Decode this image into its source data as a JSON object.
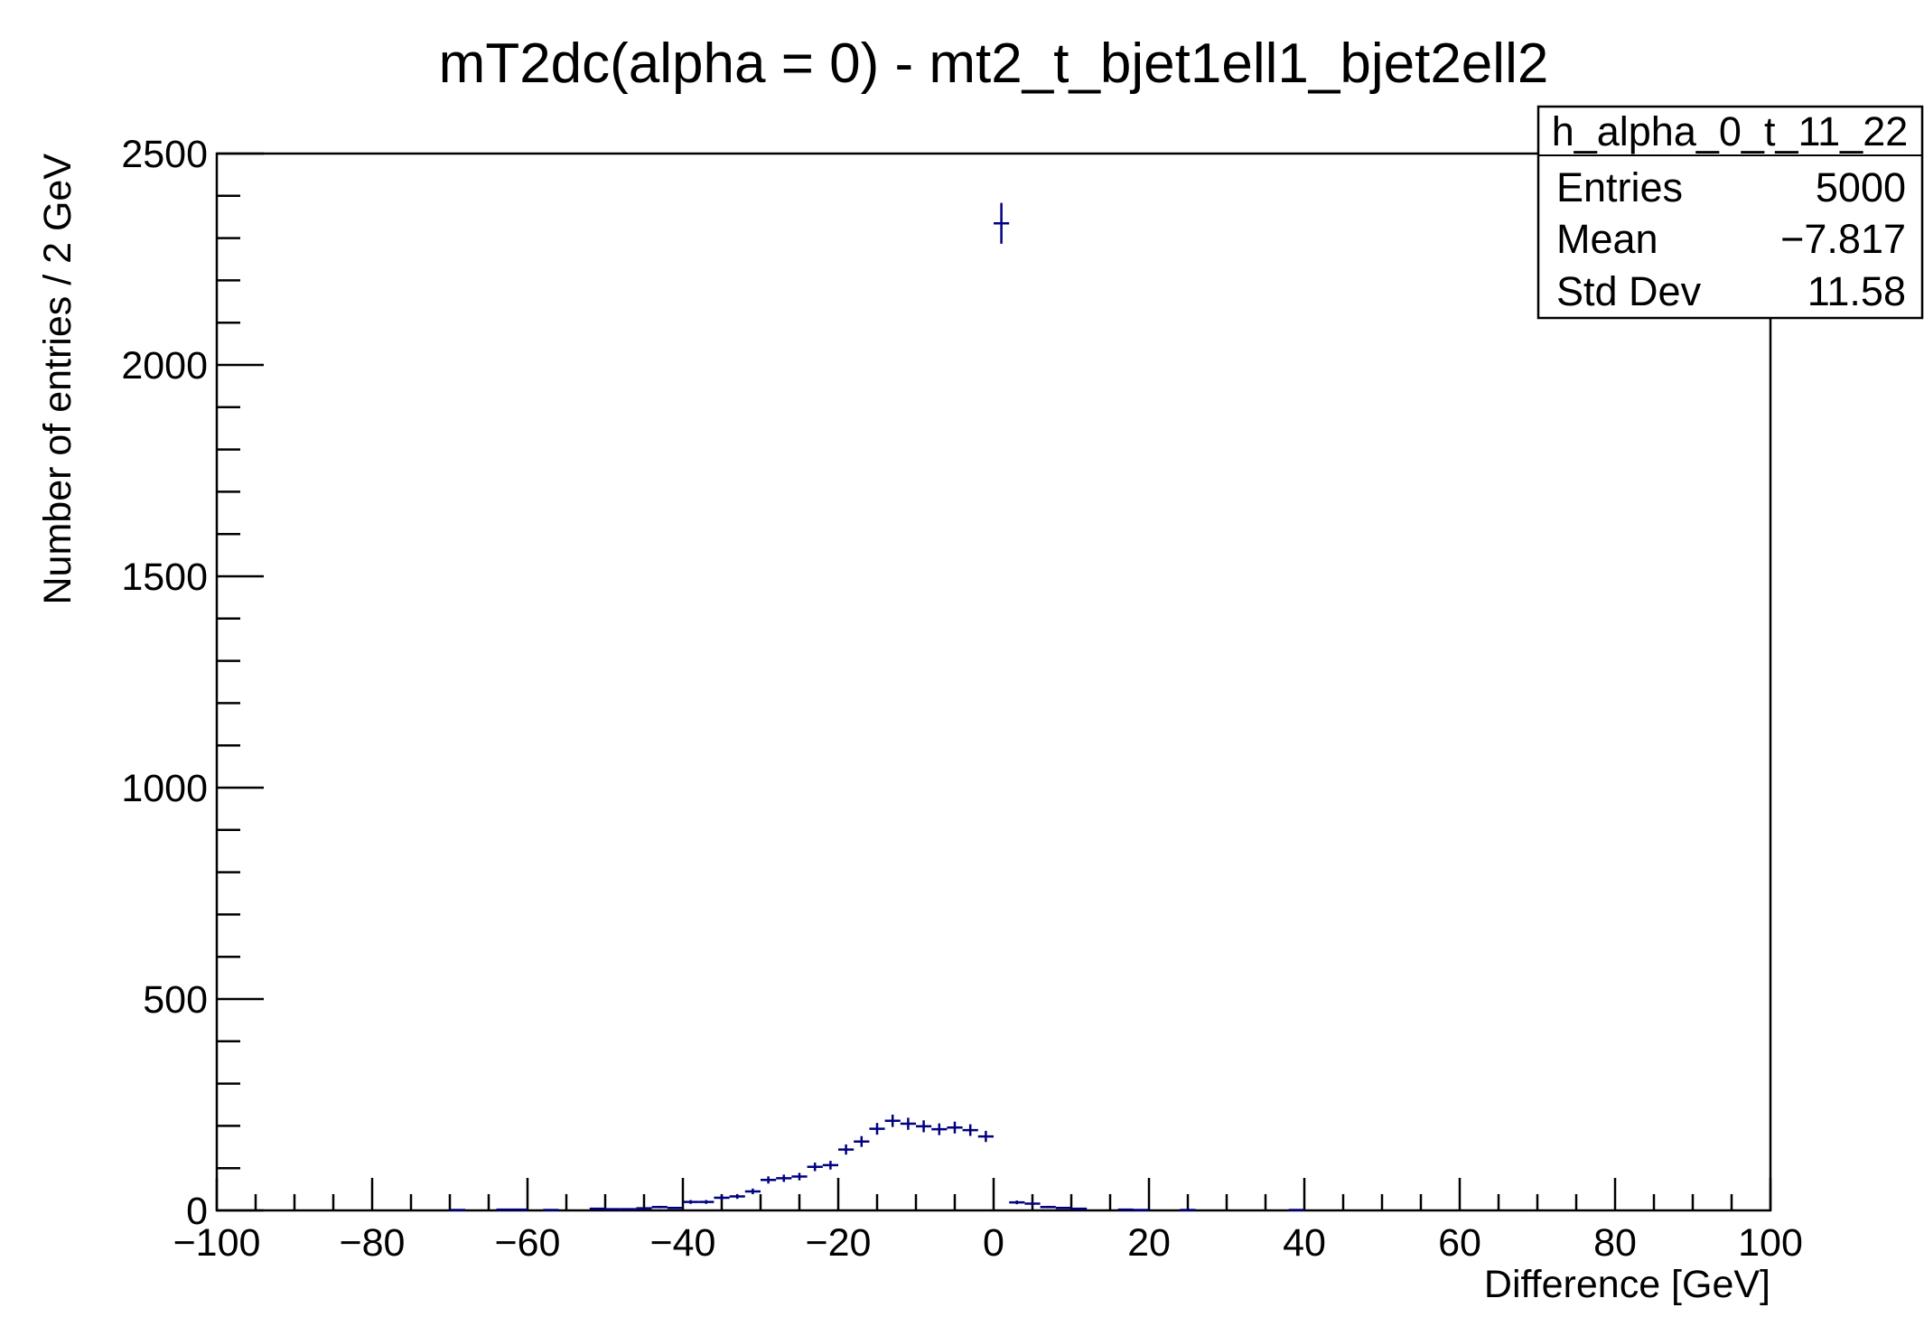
{
  "chart_data": {
    "type": "scatter",
    "title": "mT2dc(alpha = 0) - mt2_t_bjet1ell1_bjet2ell2",
    "xlabel": "Difference [GeV]",
    "ylabel": "Number of entries / 2 GeV",
    "xlim": [
      -100,
      100
    ],
    "ylim": [
      0,
      2500
    ],
    "x_ticks": [
      -100,
      -80,
      -60,
      -40,
      -20,
      0,
      20,
      40,
      60,
      80,
      100
    ],
    "x_tick_labels": [
      "−100",
      "−80",
      "−60",
      "−40",
      "−20",
      "0",
      "20",
      "40",
      "60",
      "80",
      "100"
    ],
    "y_ticks": [
      0,
      500,
      1000,
      1500,
      2000,
      2500
    ],
    "y_tick_labels": [
      "0",
      "500",
      "1000",
      "1500",
      "2000",
      "2500"
    ],
    "bin_width": 2,
    "grid": false,
    "marker_color": "#000080",
    "series": [
      {
        "x": [
          -69,
          -63,
          -61,
          -57,
          -51,
          -49,
          -47,
          -45,
          -43,
          -41,
          -39,
          -37,
          -35,
          -33,
          -31,
          -29,
          -27,
          -25,
          -23,
          -21,
          -19,
          -17,
          -15,
          -13,
          -11,
          -9,
          -7,
          -5,
          -3,
          -1,
          1,
          3,
          5,
          7,
          9,
          11,
          17,
          19,
          25,
          39
        ],
        "y": [
          1,
          2,
          2,
          1,
          4,
          3,
          3,
          5,
          8,
          6,
          20,
          20,
          30,
          33,
          45,
          72,
          76,
          80,
          103,
          107,
          144,
          163,
          193,
          212,
          205,
          199,
          192,
          196,
          190,
          175,
          2335,
          19,
          16,
          8,
          6,
          4,
          2,
          1,
          1,
          1
        ],
        "err": [
          1,
          1.4,
          1.4,
          1,
          2,
          1.7,
          1.7,
          2.2,
          2.8,
          2.4,
          4.5,
          4.5,
          5.5,
          5.7,
          6.7,
          8.5,
          8.7,
          8.9,
          10.1,
          10.3,
          12,
          12.8,
          13.9,
          14.6,
          14.3,
          14.1,
          13.9,
          14,
          13.8,
          13.2,
          48.3,
          4.4,
          4,
          2.8,
          2.4,
          2,
          1.4,
          1,
          1,
          1
        ]
      }
    ]
  },
  "stats_box": {
    "name": "h_alpha_0_t_11_22",
    "rows": [
      {
        "label": "Entries",
        "value": "5000"
      },
      {
        "label": "Mean",
        "value": "−7.817"
      },
      {
        "label": "Std Dev",
        "value": "11.58"
      }
    ]
  }
}
